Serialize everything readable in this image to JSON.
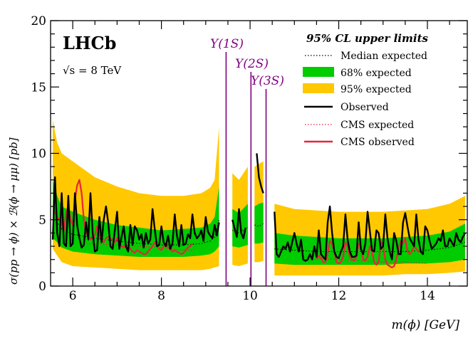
{
  "chart_data": {
    "type": "line",
    "experiment_label": "LHCb",
    "energy_label": "√s = 8 TeV",
    "xlabel": "m(ϕ) [GeV]",
    "ylabel": "σ(pp → ϕ) × ℬ(ϕ → μμ) [pb]",
    "xlim": [
      5.5,
      14.9
    ],
    "ylim": [
      0,
      20
    ],
    "x_ticks": [
      6,
      8,
      10,
      12,
      14
    ],
    "y_ticks": [
      0,
      5,
      10,
      15,
      20
    ],
    "legend": {
      "title": "95% CL upper limits",
      "placement": "top-right",
      "entries": [
        {
          "key": "median",
          "label": "Median expected"
        },
        {
          "key": "band68",
          "label": "68% expected"
        },
        {
          "key": "band95",
          "label": "95% expected"
        },
        {
          "key": "observed",
          "label": "Observed"
        },
        {
          "key": "cms_expected",
          "label": "CMS expected"
        },
        {
          "key": "cms_observed",
          "label": "CMS observed"
        }
      ]
    },
    "resonances": [
      {
        "label": "Υ(1S)",
        "mass": 9.46
      },
      {
        "label": "Υ(2S)",
        "mass": 10.02
      },
      {
        "label": "Υ(3S)",
        "mass": 10.36
      }
    ],
    "colors": {
      "band95": "#ffc800",
      "band68": "#00cc00",
      "observed": "#000000",
      "median": "#000000",
      "cms": "#e8243a",
      "resonance": "#800080"
    },
    "segments": [
      {
        "x": [
          5.55,
          5.65,
          5.75,
          6.0,
          6.5,
          7.0,
          7.5,
          8.0,
          8.5,
          8.9,
          9.1,
          9.2,
          9.3
        ],
        "band95_lower": [
          2.8,
          2.3,
          1.8,
          1.5,
          1.4,
          1.3,
          1.2,
          1.2,
          1.2,
          1.2,
          1.3,
          1.4,
          1.5
        ],
        "band95_upper": [
          12.5,
          10.8,
          10.0,
          9.4,
          8.2,
          7.5,
          7.0,
          6.8,
          6.8,
          7.0,
          7.4,
          8.0,
          12.0
        ],
        "band68_lower": [
          3.6,
          3.3,
          2.9,
          2.6,
          2.4,
          2.3,
          2.2,
          2.2,
          2.2,
          2.3,
          2.4,
          2.6,
          3.0
        ],
        "band68_upper": [
          8.0,
          6.8,
          6.0,
          5.6,
          5.0,
          4.6,
          4.4,
          4.2,
          4.3,
          4.4,
          4.7,
          5.2,
          7.5
        ],
        "median": [
          5.2,
          4.8,
          4.3,
          3.9,
          3.6,
          3.4,
          3.2,
          3.1,
          3.1,
          3.2,
          3.4,
          3.7,
          5.0
        ]
      },
      {
        "x": [
          9.6,
          9.75,
          9.95
        ],
        "band95_lower": [
          1.6,
          1.5,
          1.7
        ],
        "band95_upper": [
          8.5,
          8.0,
          9.0
        ],
        "band68_lower": [
          3.0,
          2.9,
          3.1
        ],
        "band68_upper": [
          5.8,
          5.5,
          6.2
        ],
        "median": [
          4.2,
          4.0,
          4.4
        ]
      },
      {
        "x": [
          10.1,
          10.2,
          10.3
        ],
        "band95_lower": [
          1.8,
          1.8,
          1.9
        ],
        "band95_upper": [
          9.0,
          9.2,
          9.4
        ],
        "band68_lower": [
          3.2,
          3.2,
          3.3
        ],
        "band68_upper": [
          6.0,
          6.2,
          6.3
        ],
        "median": [
          4.6,
          4.5,
          4.7
        ]
      },
      {
        "x": [
          10.55,
          11.0,
          11.5,
          12.0,
          12.5,
          13.0,
          13.5,
          14.0,
          14.5,
          14.85
        ],
        "band95_lower": [
          0.8,
          0.8,
          0.8,
          0.8,
          0.8,
          0.8,
          0.9,
          0.9,
          1.0,
          1.1
        ],
        "band95_upper": [
          6.2,
          5.8,
          5.7,
          5.6,
          5.6,
          5.6,
          5.7,
          5.8,
          6.2,
          6.8
        ],
        "band68_lower": [
          1.7,
          1.6,
          1.6,
          1.6,
          1.6,
          1.6,
          1.7,
          1.7,
          1.8,
          2.0
        ],
        "band68_upper": [
          4.0,
          3.8,
          3.7,
          3.6,
          3.6,
          3.6,
          3.7,
          3.8,
          4.1,
          4.7
        ],
        "median": [
          2.8,
          2.7,
          2.6,
          2.6,
          2.6,
          2.6,
          2.6,
          2.7,
          2.9,
          3.3
        ]
      }
    ],
    "observed": [
      {
        "x": [
          5.55,
          5.6,
          5.65,
          5.7,
          5.75,
          5.8,
          5.85,
          5.9,
          5.95,
          6.0,
          6.05,
          6.1,
          6.15,
          6.2,
          6.25,
          6.3,
          6.35,
          6.4,
          6.45,
          6.5,
          6.55,
          6.6,
          6.65,
          6.7,
          6.75,
          6.8,
          6.85,
          6.9,
          6.95,
          7.0,
          7.05,
          7.1,
          7.15,
          7.2,
          7.25,
          7.3,
          7.35,
          7.4,
          7.45,
          7.5,
          7.55,
          7.6,
          7.65,
          7.7,
          7.75,
          7.8,
          7.85,
          7.9,
          7.95,
          8.0,
          8.05,
          8.1,
          8.15,
          8.2,
          8.25,
          8.3,
          8.35,
          8.4,
          8.45,
          8.5,
          8.55,
          8.6,
          8.65,
          8.7,
          8.75,
          8.8,
          8.85,
          8.9,
          8.95,
          9.0,
          9.05,
          9.1,
          9.15,
          9.2,
          9.25,
          9.3
        ],
        "y": [
          3.5,
          8.2,
          4.0,
          3.0,
          7.0,
          3.2,
          3.0,
          6.8,
          3.0,
          3.2,
          7.0,
          4.6,
          3.6,
          2.9,
          3.1,
          4.8,
          3.5,
          7.0,
          4.0,
          2.6,
          2.7,
          5.2,
          3.3,
          5.0,
          6.0,
          4.8,
          3.0,
          2.8,
          4.2,
          5.6,
          2.8,
          3.7,
          4.5,
          3.0,
          2.6,
          4.6,
          3.1,
          4.5,
          4.2,
          3.5,
          3.9,
          2.9,
          4.0,
          3.2,
          3.5,
          5.8,
          4.3,
          3.0,
          3.1,
          4.5,
          3.3,
          3.0,
          3.8,
          2.8,
          3.2,
          5.4,
          3.8,
          3.0,
          4.6,
          3.1,
          3.2,
          3.9,
          3.6,
          5.4,
          4.0,
          3.6,
          3.8,
          4.2,
          3.4,
          5.2,
          4.1,
          3.8,
          3.6,
          4.6,
          3.8,
          4.8
        ]
      },
      {
        "x": [
          9.6,
          9.7,
          9.75,
          9.8,
          9.85,
          9.9
        ],
        "y": [
          5.0,
          3.7,
          5.8,
          4.0,
          3.6,
          4.4
        ]
      },
      {
        "x": [
          10.15,
          10.2,
          10.25,
          10.3
        ],
        "y": [
          10.0,
          8.2,
          7.5,
          7.0
        ]
      },
      {
        "x": [
          10.55,
          10.6,
          10.65,
          10.7,
          10.75,
          10.8,
          10.85,
          10.9,
          10.95,
          11.0,
          11.05,
          11.1,
          11.15,
          11.2,
          11.25,
          11.3,
          11.35,
          11.4,
          11.45,
          11.5,
          11.55,
          11.6,
          11.65,
          11.7,
          11.75,
          11.8,
          11.85,
          11.9,
          11.95,
          12.0,
          12.05,
          12.1,
          12.15,
          12.2,
          12.25,
          12.3,
          12.35,
          12.4,
          12.45,
          12.5,
          12.55,
          12.6,
          12.65,
          12.7,
          12.75,
          12.8,
          12.85,
          12.9,
          12.95,
          13.0,
          13.05,
          13.1,
          13.15,
          13.2,
          13.25,
          13.3,
          13.35,
          13.4,
          13.45,
          13.5,
          13.55,
          13.6,
          13.65,
          13.7,
          13.75,
          13.8,
          13.85,
          13.9,
          13.95,
          14.0,
          14.05,
          14.1,
          14.15,
          14.2,
          14.25,
          14.3,
          14.35,
          14.4,
          14.45,
          14.5,
          14.55,
          14.6,
          14.65,
          14.7,
          14.75,
          14.8,
          14.85
        ],
        "y": [
          5.6,
          2.4,
          2.2,
          2.6,
          3.0,
          2.8,
          3.3,
          2.6,
          3.3,
          4.0,
          3.2,
          2.6,
          3.5,
          2.0,
          1.9,
          2.0,
          2.4,
          2.0,
          3.0,
          2.2,
          4.2,
          2.4,
          2.2,
          2.0,
          4.8,
          6.0,
          4.0,
          2.6,
          2.2,
          2.1,
          2.6,
          3.0,
          5.4,
          3.5,
          2.6,
          2.2,
          2.2,
          2.3,
          4.8,
          2.8,
          2.4,
          3.2,
          5.6,
          4.2,
          2.7,
          2.6,
          4.2,
          4.0,
          2.8,
          3.0,
          5.4,
          3.6,
          2.6,
          2.0,
          4.0,
          3.4,
          2.4,
          2.4,
          4.8,
          5.5,
          4.5,
          3.6,
          3.3,
          3.0,
          5.4,
          3.5,
          2.6,
          2.4,
          4.5,
          4.2,
          3.4,
          2.8,
          3.0,
          3.2,
          3.6,
          3.4,
          4.2,
          3.0,
          3.0,
          3.6,
          3.3,
          3.0,
          4.0,
          3.5,
          3.3,
          3.7,
          4.0
        ]
      }
    ],
    "cms_expected": [
      {
        "x": [
          6.3,
          7.0,
          7.5,
          8.0,
          8.5,
          8.7
        ],
        "y": [
          3.2,
          3.1,
          3.0,
          2.9,
          2.7,
          2.7
        ]
      },
      {
        "x": [
          11.5,
          12.0,
          12.5,
          13.0,
          13.5,
          14.0
        ],
        "y": [
          2.1,
          2.0,
          1.9,
          1.8,
          1.8,
          1.7
        ]
      }
    ],
    "cms_observed": [
      {
        "x": [
          5.6,
          5.65,
          5.7,
          5.75,
          5.8,
          5.85,
          5.9,
          5.95,
          6.0,
          6.05,
          6.1,
          6.15,
          6.2,
          6.25,
          6.3,
          6.35,
          6.4,
          6.45,
          6.5,
          6.55,
          6.6,
          6.65,
          6.7,
          6.75,
          6.8,
          6.85,
          6.9,
          6.95,
          7.0,
          7.05,
          7.1,
          7.15,
          7.2,
          7.25,
          7.3,
          7.35,
          7.4,
          7.45,
          7.5,
          7.55,
          7.6,
          7.65,
          7.7,
          7.75,
          7.8,
          7.85,
          7.9,
          7.95,
          8.0,
          8.05,
          8.1,
          8.15,
          8.2,
          8.25,
          8.3,
          8.35,
          8.4,
          8.45,
          8.5,
          8.55,
          8.6,
          8.65,
          8.7
        ],
        "y": [
          5.6,
          5.2,
          5.0,
          4.8,
          4.2,
          5.5,
          6.0,
          5.0,
          4.6,
          6.5,
          7.6,
          8.0,
          7.0,
          5.0,
          4.0,
          3.8,
          3.5,
          3.6,
          3.8,
          4.5,
          3.8,
          3.5,
          3.3,
          3.6,
          3.7,
          3.6,
          3.5,
          3.3,
          3.6,
          3.2,
          3.0,
          2.9,
          3.1,
          3.0,
          2.8,
          2.6,
          2.5,
          2.7,
          2.6,
          2.5,
          2.4,
          2.4,
          2.6,
          2.8,
          3.0,
          3.3,
          3.0,
          2.8,
          2.7,
          3.0,
          3.2,
          2.9,
          2.8,
          2.6,
          2.7,
          2.6,
          2.5,
          2.4,
          2.5,
          2.7,
          2.9,
          3.0,
          3.2
        ]
      },
      {
        "x": [
          11.5,
          11.55,
          11.6,
          11.65,
          11.7,
          11.75,
          11.8,
          11.85,
          11.9,
          11.95,
          12.0,
          12.05,
          12.1,
          12.15,
          12.2,
          12.25,
          12.3,
          12.35,
          12.4,
          12.45,
          12.5,
          12.55,
          12.6,
          12.65,
          12.7,
          12.75,
          12.8,
          12.85,
          12.9,
          12.95,
          13.0,
          13.05,
          13.1,
          13.15,
          13.2,
          13.25,
          13.3,
          13.35,
          13.4,
          13.45,
          13.5,
          13.55,
          13.6,
          13.65,
          13.7,
          13.75,
          13.8,
          13.85,
          13.9
        ],
        "y": [
          2.0,
          2.3,
          2.1,
          1.8,
          1.8,
          2.5,
          3.4,
          3.2,
          2.6,
          1.8,
          1.7,
          1.8,
          2.2,
          3.3,
          3.0,
          2.2,
          2.0,
          1.9,
          2.2,
          3.2,
          3.0,
          2.0,
          1.9,
          2.2,
          3.0,
          2.6,
          1.8,
          1.6,
          1.8,
          3.4,
          3.0,
          2.0,
          1.6,
          1.5,
          1.4,
          1.5,
          2.0,
          2.8,
          3.4,
          3.2,
          3.6,
          2.6,
          2.4,
          2.6,
          3.0,
          2.8,
          2.6,
          2.6,
          2.5
        ]
      }
    ]
  }
}
